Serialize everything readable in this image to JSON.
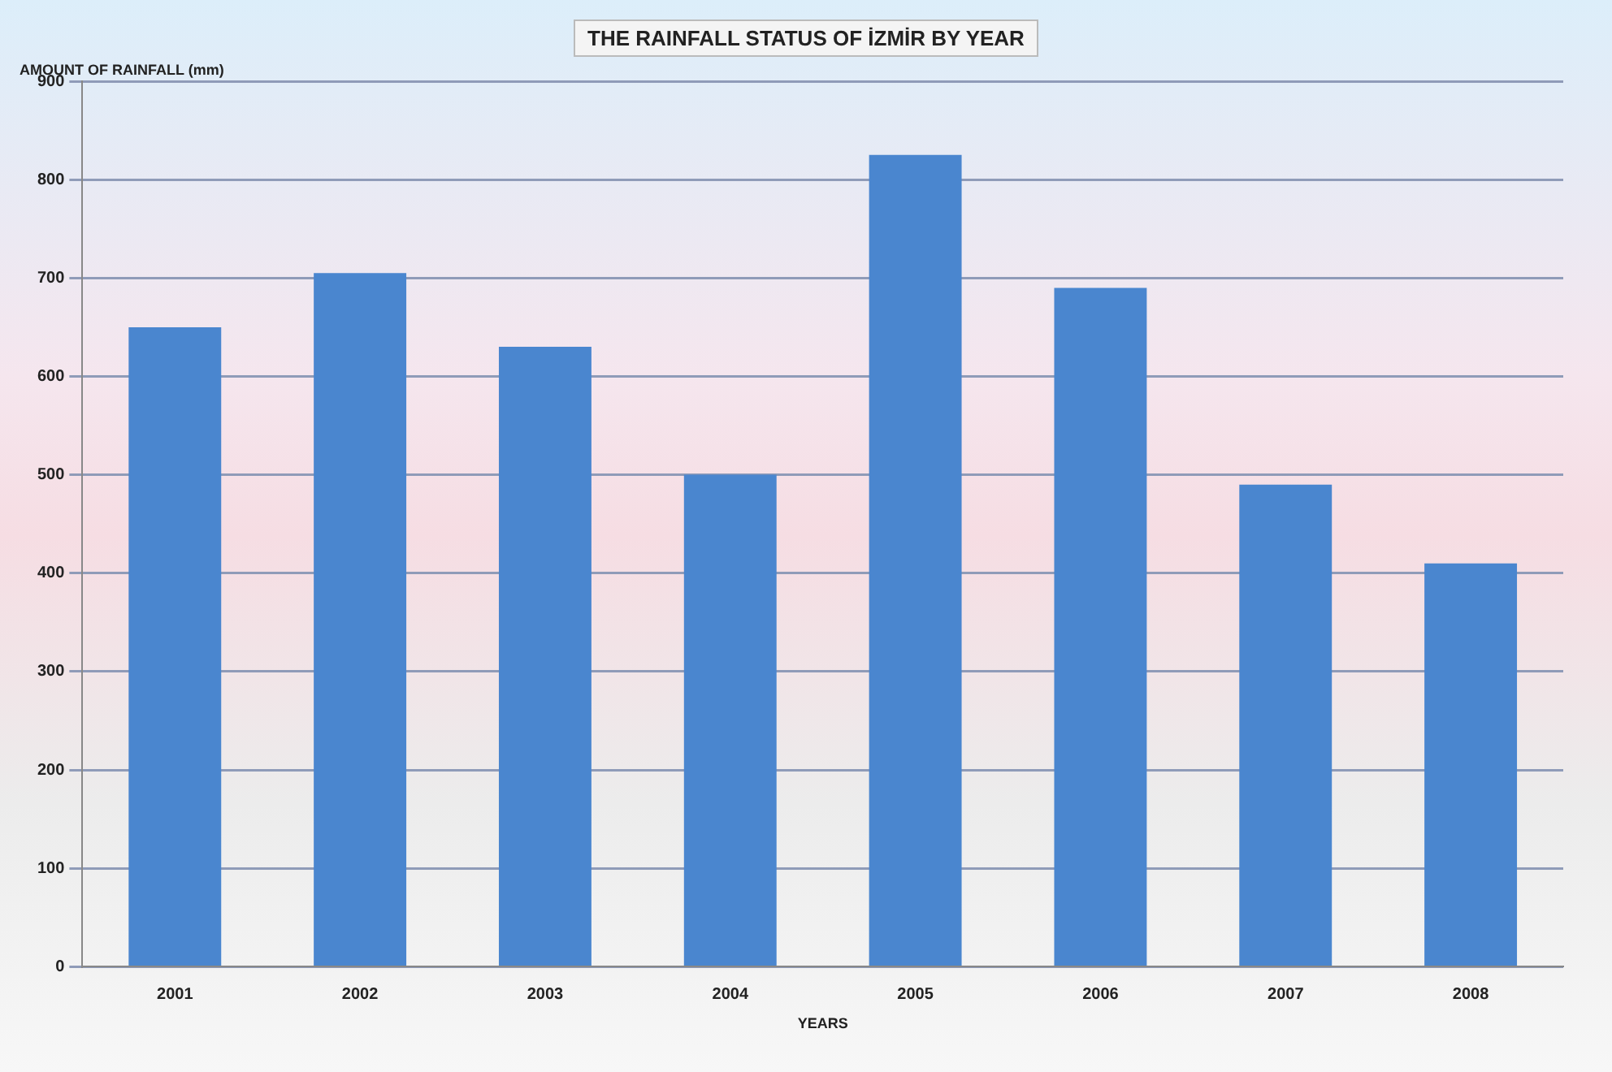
{
  "chart_data": {
    "type": "bar",
    "title": "THE RAINFALL STATUS OF İZMİR BY YEAR",
    "xlabel": "YEARS",
    "ylabel": "AMOUNT OF RAINFALL (mm)",
    "categories": [
      "2001",
      "2002",
      "2003",
      "2004",
      "2005",
      "2006",
      "2007",
      "2008"
    ],
    "values": [
      650,
      705,
      630,
      500,
      825,
      690,
      490,
      410
    ],
    "color": "#4a86cf",
    "ylim": [
      0,
      900
    ],
    "yticks": [
      0,
      100,
      200,
      300,
      400,
      500,
      600,
      700,
      800,
      900
    ],
    "grid": "y"
  }
}
